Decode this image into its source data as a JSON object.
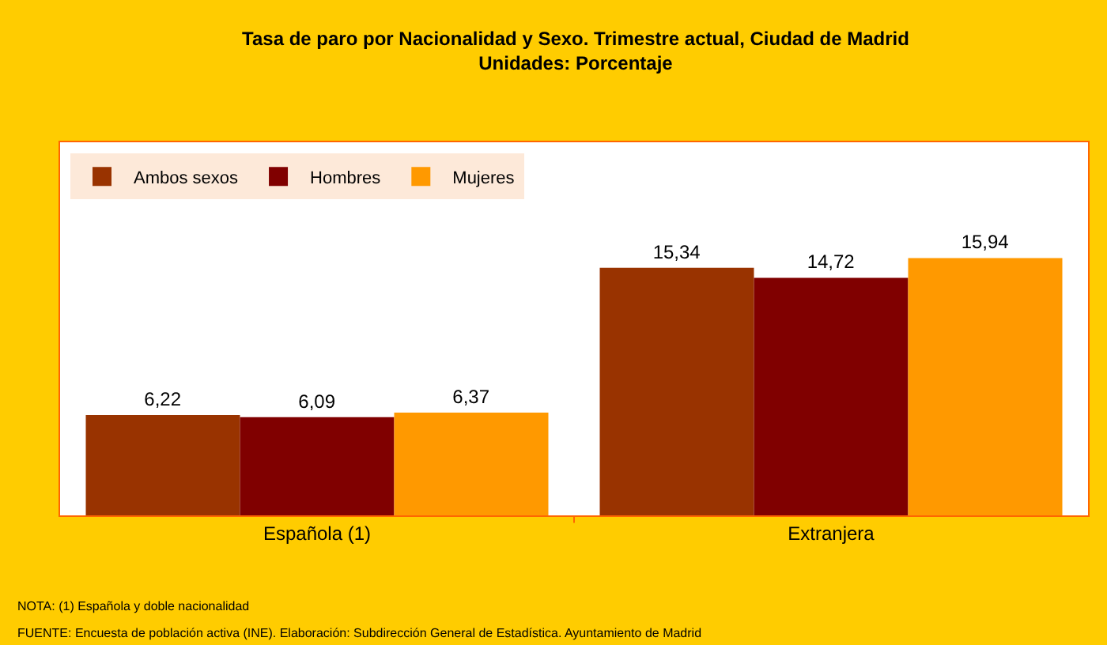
{
  "chart_data": {
    "type": "bar",
    "title": "Tasa de paro por Nacionalidad y Sexo. Trimestre actual, Ciudad de Madrid",
    "subtitle": "Unidades: Porcentaje",
    "categories": [
      "Española (1)",
      "Extranjera"
    ],
    "series": [
      {
        "name": "Ambos sexos",
        "color": "#993300",
        "values": [
          6.22,
          15.34
        ],
        "value_labels": [
          "6,22",
          "15,34"
        ]
      },
      {
        "name": "Hombres",
        "color": "#800000",
        "values": [
          6.09,
          14.72
        ],
        "value_labels": [
          "6,09",
          "14,72"
        ]
      },
      {
        "name": "Mujeres",
        "color": "#ff9900",
        "values": [
          6.37,
          15.94
        ],
        "value_labels": [
          "6,37",
          "15,94"
        ]
      }
    ],
    "grid": false,
    "legend": "top left",
    "tick_labels": "x",
    "annotations": [
      "NOTA: (1) Española y doble nacionalidad",
      "FUENTE: Encuesta de población activa (INE). Elaboración: Subdirección General de Estadística. Ayuntamiento de Madrid"
    ]
  }
}
